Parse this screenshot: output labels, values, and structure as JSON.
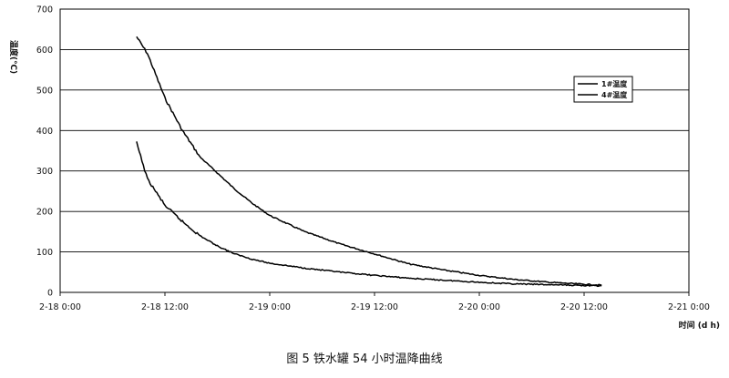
{
  "chart_data": {
    "type": "line",
    "xlabel": "时间 (d h)",
    "ylabel": "温度(℃)",
    "ylim": [
      0,
      700
    ],
    "yticks": [
      0,
      100,
      200,
      300,
      400,
      500,
      600,
      700
    ],
    "xlim": [
      "2-18 0:00",
      "2-21 0:00"
    ],
    "xtick_labels": [
      "2-18 0:00",
      "2-18 12:00",
      "2-19 0:00",
      "2-19 12:00",
      "2-20 0:00",
      "2-20 12:00",
      "2-21 0:00"
    ],
    "grid": "horizontal",
    "legend_position": "right",
    "series": [
      {
        "name": "1#温度",
        "x": [
          "2-18 8:45",
          "2-18 10:00",
          "2-18 12:00",
          "2-18 14:00",
          "2-18 16:00",
          "2-18 18:00",
          "2-18 20:00",
          "2-18 22:00",
          "2-19 0:00",
          "2-19 4:00",
          "2-19 8:00",
          "2-19 12:00",
          "2-19 16:00",
          "2-19 20:00",
          "2-20 0:00",
          "2-20 4:00",
          "2-20 8:00",
          "2-20 12:00",
          "2-20 14:00"
        ],
        "y": [
          632,
          590,
          480,
          400,
          335,
          295,
          255,
          220,
          190,
          150,
          120,
          95,
          70,
          55,
          42,
          32,
          25,
          20,
          18
        ]
      },
      {
        "name": "4#温度",
        "x": [
          "2-18 8:45",
          "2-18 10:00",
          "2-18 12:00",
          "2-18 14:00",
          "2-18 16:00",
          "2-18 18:00",
          "2-18 20:00",
          "2-18 22:00",
          "2-19 0:00",
          "2-19 4:00",
          "2-19 8:00",
          "2-19 12:00",
          "2-19 16:00",
          "2-19 20:00",
          "2-20 0:00",
          "2-20 4:00",
          "2-20 8:00",
          "2-20 12:00",
          "2-20 14:00"
        ],
        "y": [
          370,
          280,
          215,
          175,
          140,
          115,
          95,
          82,
          72,
          60,
          50,
          42,
          35,
          30,
          25,
          21,
          19,
          17,
          16
        ]
      }
    ]
  },
  "caption": "图 5    铁水罐 54 小时温降曲线"
}
